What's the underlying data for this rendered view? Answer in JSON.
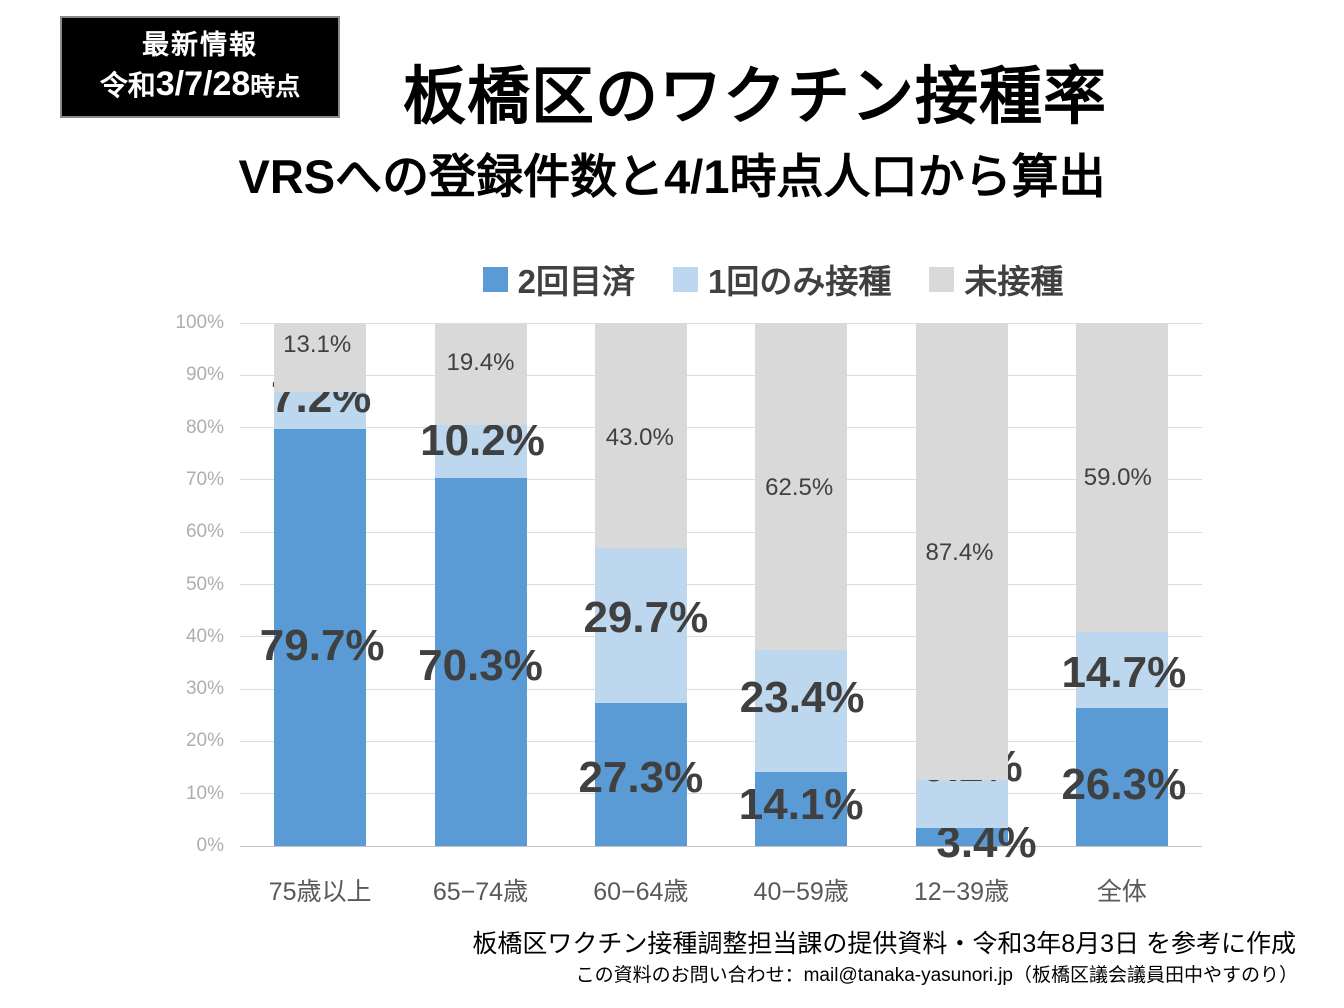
{
  "badge": {
    "line1": "最新情報",
    "line2_era": "令和",
    "line2_date": "3/7/28",
    "line2_suffix": "時点"
  },
  "title": "板橋区のワクチン接種率",
  "subtitle": "VRSへの登録件数と4/1時点人口から算出",
  "legend": [
    {
      "label": "2回目済",
      "color": "#5B9BD5"
    },
    {
      "label": "1回のみ接種",
      "color": "#BDD7EE"
    },
    {
      "label": "未接種",
      "color": "#D9D9D9"
    }
  ],
  "chart_data": {
    "type": "bar",
    "stacked": true,
    "categories": [
      "75歳以上",
      "65−74歳",
      "60−64歳",
      "40−59歳",
      "12−39歳",
      "全体"
    ],
    "series": [
      {
        "name": "2回目済",
        "color": "#5B9BD5",
        "values": [
          79.7,
          70.3,
          27.3,
          14.1,
          3.4,
          26.3
        ]
      },
      {
        "name": "1回のみ接種",
        "color": "#BDD7EE",
        "values": [
          7.2,
          10.2,
          29.7,
          23.4,
          9.2,
          14.7
        ]
      },
      {
        "name": "未接種",
        "color": "#D9D9D9",
        "values": [
          13.1,
          19.4,
          43.0,
          62.5,
          87.4,
          59.0
        ]
      }
    ],
    "value_suffix": "%",
    "ylim": [
      0,
      100
    ],
    "yticks": [
      "0%",
      "10%",
      "20%",
      "30%",
      "40%",
      "50%",
      "60%",
      "70%",
      "80%",
      "90%",
      "100%"
    ],
    "grid": true,
    "legend_position": "top",
    "label_colors": {
      "text": "#404040"
    }
  },
  "footer": {
    "line1": "板橋区ワクチン接種調整担当課の提供資料・令和3年8月3日 を参考に作成",
    "line2": "この資料のお問い合わせ：mail@tanaka-yasunori.jp（板橋区議会議員田中やすのり）"
  }
}
